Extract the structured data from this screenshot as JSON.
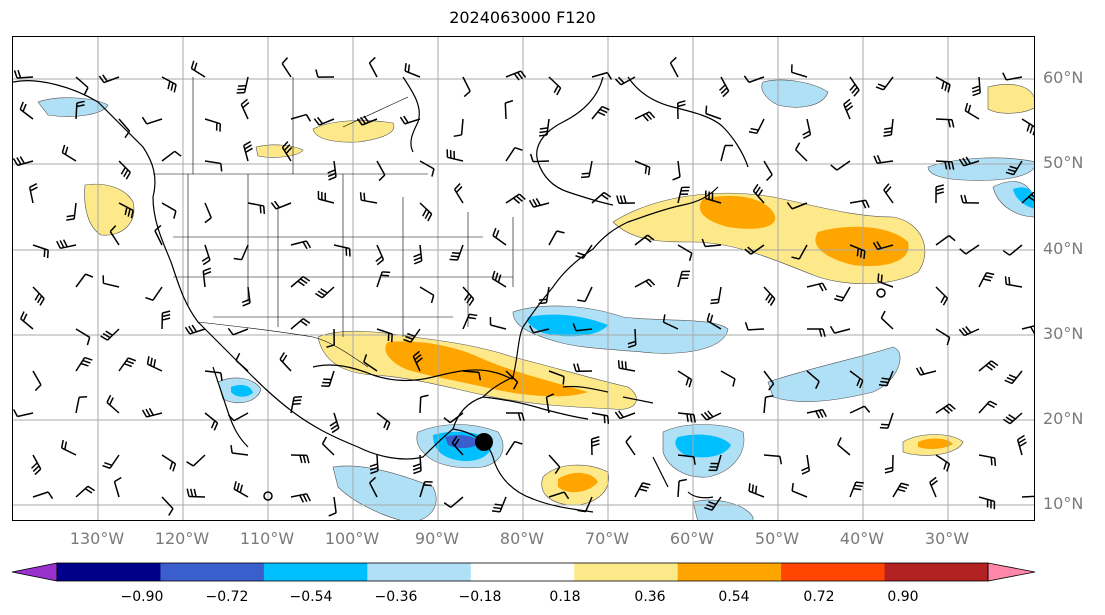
{
  "title": "2024063000 F120",
  "map": {
    "lat_labels": [
      "60°N",
      "50°N",
      "40°N",
      "30°N",
      "20°N",
      "10°N"
    ],
    "lon_labels": [
      "130°W",
      "120°W",
      "110°W",
      "100°W",
      "90°W",
      "80°W",
      "70°W",
      "60°W",
      "50°W",
      "40°W",
      "30°W"
    ],
    "gridlines": true,
    "feature": {
      "type": "storm-center-marker",
      "lon": -85,
      "lat": 17.5
    }
  },
  "colorbar": {
    "tick_labels": [
      "−0.90",
      "−0.72",
      "−0.54",
      "−0.36",
      "−0.18",
      "0.18",
      "0.36",
      "0.54",
      "0.72",
      "0.90"
    ],
    "levels": [
      -0.9,
      -0.72,
      -0.54,
      -0.36,
      -0.18,
      0.18,
      0.36,
      0.54,
      0.72,
      0.9
    ],
    "colors": [
      "#9932cc",
      "#00008b",
      "#3a5fcd",
      "#00bfff",
      "#b0e0f5",
      "#ffffff",
      "#fde98a",
      "#ffa500",
      "#ff4500",
      "#b22222",
      "#ff88aa"
    ],
    "extend": "both"
  }
}
